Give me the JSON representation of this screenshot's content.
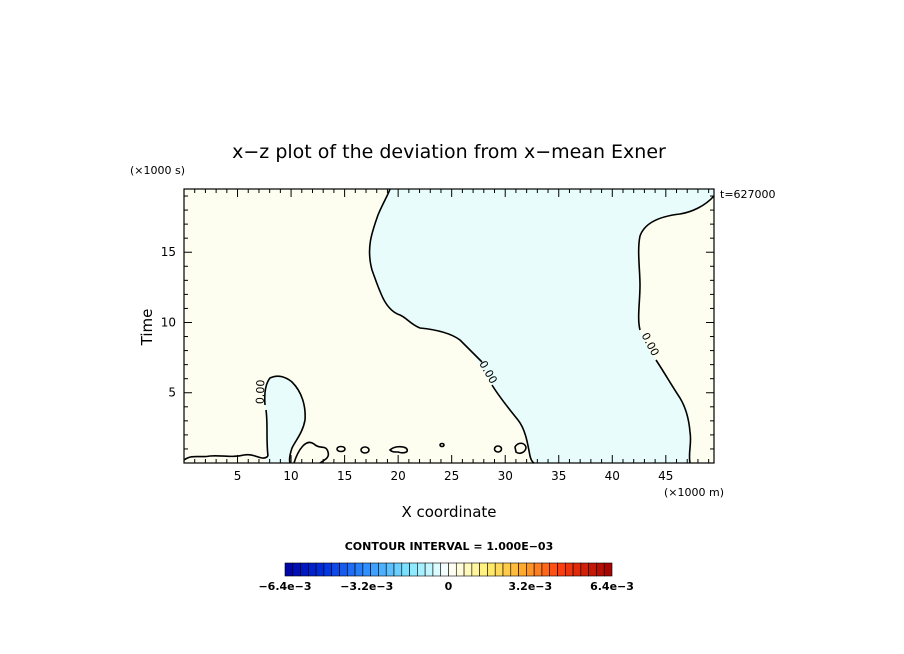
{
  "chart_data": {
    "type": "contour",
    "title": "x−z plot of the deviation from x−mean Exner",
    "xlabel": "X coordinate",
    "ylabel": "Time",
    "x_unit_label": "(×1000 m)",
    "y_unit_label": "(×1000 s)",
    "time_label": "t=627000",
    "xlim": [
      0,
      49.5
    ],
    "ylim": [
      0,
      19.5
    ],
    "x_ticks": [
      5,
      10,
      15,
      20,
      25,
      30,
      35,
      40,
      45
    ],
    "y_ticks": [
      5,
      10,
      15
    ],
    "contour_interval_text": "CONTOUR INTERVAL = 1.000E−03",
    "contour_labels": [
      "0.00",
      "0.00",
      "0.00"
    ],
    "colorbar": {
      "min": -0.0064,
      "max": 0.0064,
      "labels": [
        "−6.4e−3",
        "−3.2e−3",
        "0",
        "3.2e−3",
        "6.4e−3"
      ]
    },
    "colors": {
      "negative_fill": "#e8fcfc",
      "positive_fill": "#fdfdf0"
    }
  }
}
